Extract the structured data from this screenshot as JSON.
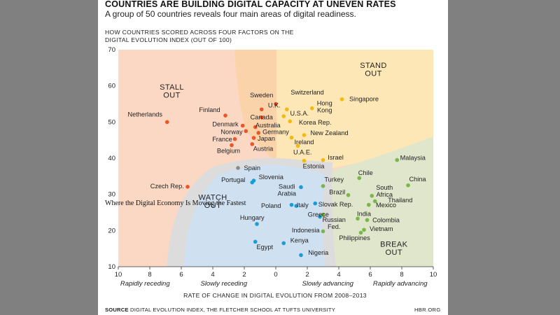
{
  "page": {
    "title": "COUNTRIES ARE BUILDING DIGITAL CAPACITY AT UNEVEN RATES",
    "subtitle": "A group of 50 countries reveals four main areas of digital readiness.",
    "chart_heading_line1": "HOW COUNTRIES SCORED ACROSS FOUR FACTORS ON THE",
    "chart_heading_line2": "DIGITAL EVOLUTION INDEX (OUT OF 100)",
    "source_label": "SOURCE",
    "source_text": "DIGITAL EVOLUTION INDEX, THE FLETCHER SCHOOL AT TUFTS UNIVERSITY",
    "credit": "HBR.ORG",
    "overlay_text": "Where the Digital Economy Is Moving the Fastest"
  },
  "colors": {
    "stall": "#e8572a",
    "stand": "#f2b90f",
    "watch": "#1b9cd6",
    "break": "#7ab648",
    "spain": "#8a8a8a",
    "bg_stall": "#fbd8c4",
    "bg_stand": "#fde7b6",
    "bg_break": "#dfe6cc",
    "bg_watch": "#cfe0f0",
    "bg_peach": "#fbd3ab",
    "bg_grey": "#dcdcdc"
  },
  "chart_data": {
    "type": "scatter",
    "title": "HOW COUNTRIES SCORED ACROSS FOUR FACTORS ON THE DIGITAL EVOLUTION INDEX (OUT OF 100)",
    "xlabel": "RATE OF CHANGE IN DIGITAL EVOLUTION FROM 2008–2013",
    "ylabel": "",
    "xlim": [
      -10,
      10
    ],
    "ylim": [
      10,
      70
    ],
    "x_ticks": [
      -10,
      -8,
      -6,
      -4,
      -2,
      0,
      2,
      4,
      6,
      8,
      10
    ],
    "x_tick_labels": [
      "10",
      "8",
      "6",
      "4",
      "2",
      "0",
      "2",
      "4",
      "6",
      "8",
      "10"
    ],
    "y_ticks": [
      10,
      20,
      30,
      40,
      50,
      60,
      70
    ],
    "y_tick_labels": [
      "10",
      "20",
      "30",
      "40",
      "50",
      "60",
      "70"
    ],
    "x_descriptors": [
      {
        "x": -8.3,
        "text": "Rapidly receding"
      },
      {
        "x": -3.3,
        "text": "Slowly receding"
      },
      {
        "x": 3.3,
        "text": "Slowly advancing"
      },
      {
        "x": 7.9,
        "text": "Rapidly advancing"
      }
    ],
    "zones": [
      {
        "name": "stall",
        "lines": [
          "STALL",
          "OUT"
        ],
        "x": -6.6,
        "y": 59
      },
      {
        "name": "stand",
        "lines": [
          "STAND",
          "OUT"
        ],
        "x": 6.2,
        "y": 65
      },
      {
        "name": "watch",
        "lines": [
          "WATCH",
          "OUT"
        ],
        "x": -4.0,
        "y": 28.5
      },
      {
        "name": "break",
        "lines": [
          "BREAK",
          "OUT"
        ],
        "x": 7.5,
        "y": 15.5
      }
    ],
    "series": [
      {
        "name": "Stall out",
        "color": "stall",
        "points": [
          {
            "label": "Netherlands",
            "x": -6.9,
            "y": 50.0,
            "lx": -8.3,
            "ly": 51.5,
            "anchor": "middle"
          },
          {
            "label": "Finland",
            "x": -3.2,
            "y": 51.8,
            "lx": -4.2,
            "ly": 52.8,
            "anchor": "middle"
          },
          {
            "label": "Denmark",
            "x": -2.1,
            "y": 49.0,
            "lx": -3.2,
            "ly": 48.8,
            "anchor": "middle"
          },
          {
            "label": "Norway",
            "x": -1.9,
            "y": 47.5,
            "lx": -2.8,
            "ly": 46.7,
            "anchor": "middle"
          },
          {
            "label": "France",
            "x": -2.6,
            "y": 45.3,
            "lx": -3.4,
            "ly": 44.6,
            "anchor": "middle"
          },
          {
            "label": "Belgium",
            "x": -2.8,
            "y": 43.6,
            "lx": -3.0,
            "ly": 41.5,
            "anchor": "middle"
          },
          {
            "label": "Czech Rep.",
            "x": -5.6,
            "y": 32.1,
            "lx": -6.9,
            "ly": 31.7,
            "anchor": "middle"
          },
          {
            "label": "Australia",
            "x": -1.3,
            "y": 48.6,
            "lx": -0.5,
            "ly": 48.5,
            "anchor": "middle"
          },
          {
            "label": "Germany",
            "x": -1.1,
            "y": 47.0,
            "lx": 0.0,
            "ly": 46.7,
            "anchor": "middle"
          },
          {
            "label": "Japan",
            "x": -1.4,
            "y": 45.6,
            "lx": -0.6,
            "ly": 44.8,
            "anchor": "middle"
          },
          {
            "label": "Austria",
            "x": -1.5,
            "y": 43.9,
            "lx": -0.8,
            "ly": 42.0,
            "anchor": "middle"
          },
          {
            "label": "Canada",
            "x": -0.9,
            "y": 51.3,
            "lx": -0.9,
            "ly": 50.7,
            "anchor": "middle"
          },
          {
            "label": "Sweden",
            "x": -0.9,
            "y": 53.5,
            "lx": -0.9,
            "ly": 56.8,
            "anchor": "middle"
          },
          {
            "label": "U.K.",
            "x": 0.0,
            "y": 55.0,
            "lx": -0.1,
            "ly": 54.0,
            "anchor": "middle"
          }
        ]
      },
      {
        "name": "Stand out",
        "color": "stand",
        "points": [
          {
            "label": "Switzerland",
            "x": 0.7,
            "y": 53.5,
            "lx": 2.0,
            "ly": 57.6,
            "anchor": "middle"
          },
          {
            "label": "Hong Kong",
            "x": 2.3,
            "y": 53.8,
            "lx": 3.1,
            "ly": 54.6,
            "anchor": "middle",
            "lines": [
              "Hong",
              "Kong"
            ]
          },
          {
            "label": "U.S.A.",
            "x": 0.5,
            "y": 51.6,
            "lx": 1.5,
            "ly": 51.8,
            "anchor": "middle"
          },
          {
            "label": "Korea Rep.",
            "x": 0.9,
            "y": 50.2,
            "lx": 2.5,
            "ly": 49.3,
            "anchor": "middle"
          },
          {
            "label": "New Zealand",
            "x": 1.8,
            "y": 46.4,
            "lx": 3.4,
            "ly": 46.4,
            "anchor": "middle"
          },
          {
            "label": "Singapore",
            "x": 4.2,
            "y": 56.3,
            "lx": 5.6,
            "ly": 55.8,
            "anchor": "middle"
          },
          {
            "label": "Ireland",
            "x": 1.0,
            "y": 45.7,
            "lx": 1.8,
            "ly": 43.9,
            "anchor": "middle"
          },
          {
            "label": "U.A.E.",
            "x": 1.4,
            "y": 43.4,
            "lx": 1.7,
            "ly": 41.1,
            "anchor": "middle"
          },
          {
            "label": "Israel",
            "x": 3.0,
            "y": 39.5,
            "lx": 3.8,
            "ly": 39.6,
            "anchor": "middle"
          },
          {
            "label": "Estonia",
            "x": 1.8,
            "y": 39.3,
            "lx": 2.4,
            "ly": 37.2,
            "anchor": "middle"
          }
        ]
      },
      {
        "name": "Watch out",
        "color": "watch",
        "points": [
          {
            "label": "Portugal",
            "x": -1.4,
            "y": 33.8,
            "lx": -2.7,
            "ly": 33.4,
            "anchor": "middle"
          },
          {
            "label": "Slovenia",
            "x": -1.5,
            "y": 33.3,
            "lx": -0.3,
            "ly": 34.2,
            "anchor": "middle"
          },
          {
            "label": "Saudi Arabia",
            "x": 1.6,
            "y": 32.0,
            "lx": 0.7,
            "ly": 31.6,
            "anchor": "middle",
            "lines": [
              "Saudi",
              "Arabia"
            ]
          },
          {
            "label": "Poland",
            "x": 1.3,
            "y": 26.8,
            "lx": -0.3,
            "ly": 26.3,
            "anchor": "middle"
          },
          {
            "label": "Italy",
            "x": 1.0,
            "y": 27.1,
            "lx": 1.7,
            "ly": 26.5,
            "anchor": "middle"
          },
          {
            "label": "Hungary",
            "x": -1.2,
            "y": 21.8,
            "lx": -1.5,
            "ly": 23.0,
            "anchor": "middle"
          },
          {
            "label": "Egypt",
            "x": -1.3,
            "y": 16.9,
            "lx": -0.7,
            "ly": 14.8,
            "anchor": "middle"
          },
          {
            "label": "Kenya",
            "x": 0.5,
            "y": 16.5,
            "lx": 1.5,
            "ly": 16.7,
            "anchor": "middle"
          },
          {
            "label": "Nigeria",
            "x": 1.6,
            "y": 13.2,
            "lx": 2.7,
            "ly": 13.3,
            "anchor": "middle"
          },
          {
            "label": "Slovak Rep.",
            "x": 2.5,
            "y": 27.5,
            "lx": 3.8,
            "ly": 26.6,
            "anchor": "middle"
          },
          {
            "label": "Greece",
            "x": 2.8,
            "y": 23.8,
            "lx": 2.7,
            "ly": 23.8,
            "anchor": "middle"
          }
        ]
      },
      {
        "name": "Spain",
        "color": "spain",
        "points": [
          {
            "label": "Spain",
            "x": -2.4,
            "y": 37.3,
            "lx": -1.5,
            "ly": 36.7,
            "anchor": "middle"
          }
        ]
      },
      {
        "name": "Break out",
        "color": "break",
        "points": [
          {
            "label": "Turkey",
            "x": 3.0,
            "y": 32.3,
            "lx": 3.7,
            "ly": 33.5,
            "anchor": "middle"
          },
          {
            "label": "Brazil",
            "x": 4.6,
            "y": 29.8,
            "lx": 3.9,
            "ly": 30.0,
            "anchor": "middle"
          },
          {
            "label": "Russian Fed.",
            "x": 3.0,
            "y": 24.4,
            "lx": 3.7,
            "ly": 22.4,
            "anchor": "middle",
            "lines": [
              "Russian",
              "Fed."
            ]
          },
          {
            "label": "Indonesia",
            "x": 3.0,
            "y": 19.8,
            "lx": 1.9,
            "ly": 19.5,
            "anchor": "middle"
          },
          {
            "label": "Philippines",
            "x": 5.4,
            "y": 19.4,
            "lx": 5.0,
            "ly": 17.4,
            "anchor": "middle"
          },
          {
            "label": "Chile",
            "x": 5.3,
            "y": 34.5,
            "lx": 5.7,
            "ly": 35.4,
            "anchor": "middle"
          },
          {
            "label": "South Africa",
            "x": 6.1,
            "y": 29.6,
            "lx": 6.9,
            "ly": 31.3,
            "anchor": "middle",
            "lines": [
              "South",
              "Africa"
            ]
          },
          {
            "label": "Thailand",
            "x": 6.3,
            "y": 28.1,
            "lx": 7.9,
            "ly": 27.8,
            "anchor": "middle"
          },
          {
            "label": "Mexico",
            "x": 5.9,
            "y": 27.1,
            "lx": 7.0,
            "ly": 26.5,
            "anchor": "middle"
          },
          {
            "label": "India",
            "x": 5.2,
            "y": 23.3,
            "lx": 5.6,
            "ly": 24.0,
            "anchor": "middle"
          },
          {
            "label": "Colombia",
            "x": 5.8,
            "y": 22.9,
            "lx": 7.0,
            "ly": 22.3,
            "anchor": "middle"
          },
          {
            "label": "Vietnam",
            "x": 5.6,
            "y": 20.2,
            "lx": 6.7,
            "ly": 19.9,
            "anchor": "middle"
          },
          {
            "label": "Malaysia",
            "x": 7.7,
            "y": 39.5,
            "lx": 8.7,
            "ly": 39.5,
            "anchor": "middle"
          },
          {
            "label": "China",
            "x": 8.4,
            "y": 32.5,
            "lx": 9.0,
            "ly": 33.6,
            "anchor": "middle"
          }
        ]
      }
    ]
  }
}
